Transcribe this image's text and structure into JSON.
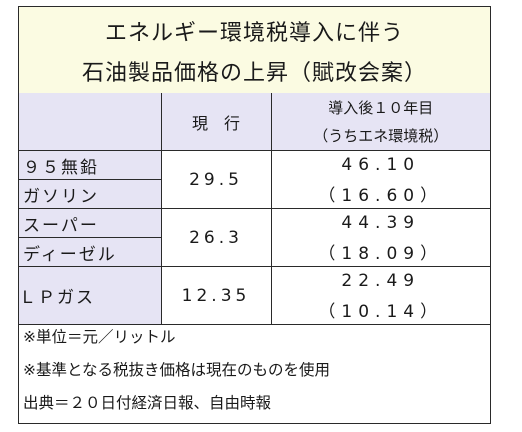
{
  "title": {
    "line1": "エネルギー環境税導入に伴う",
    "line2": "石油製品価格の上昇（賦改会案）"
  },
  "table": {
    "headers": {
      "current": "現　行",
      "after_line1": "導入後１０年目",
      "after_line2": "（うちエネ環境税）"
    },
    "rows": [
      {
        "name_line1": "９５無鉛",
        "name_line2": "ガソリン",
        "current": "29.5",
        "after": "46.10",
        "tax": "（16.60）"
      },
      {
        "name_line1": "スーパー",
        "name_line2": "ディーゼル",
        "current": "26.3",
        "after": "44.39",
        "tax": "（18.09）"
      },
      {
        "name_line1": "ＬＰガス",
        "name_line2": "",
        "current": "12.35",
        "after": "22.49",
        "tax": "（10.14）"
      }
    ]
  },
  "notes": [
    "※単位＝元／リットル",
    "※基準となる税抜き価格は現在のものを使用",
    "出典＝２０日付経済日報、自由時報"
  ]
}
